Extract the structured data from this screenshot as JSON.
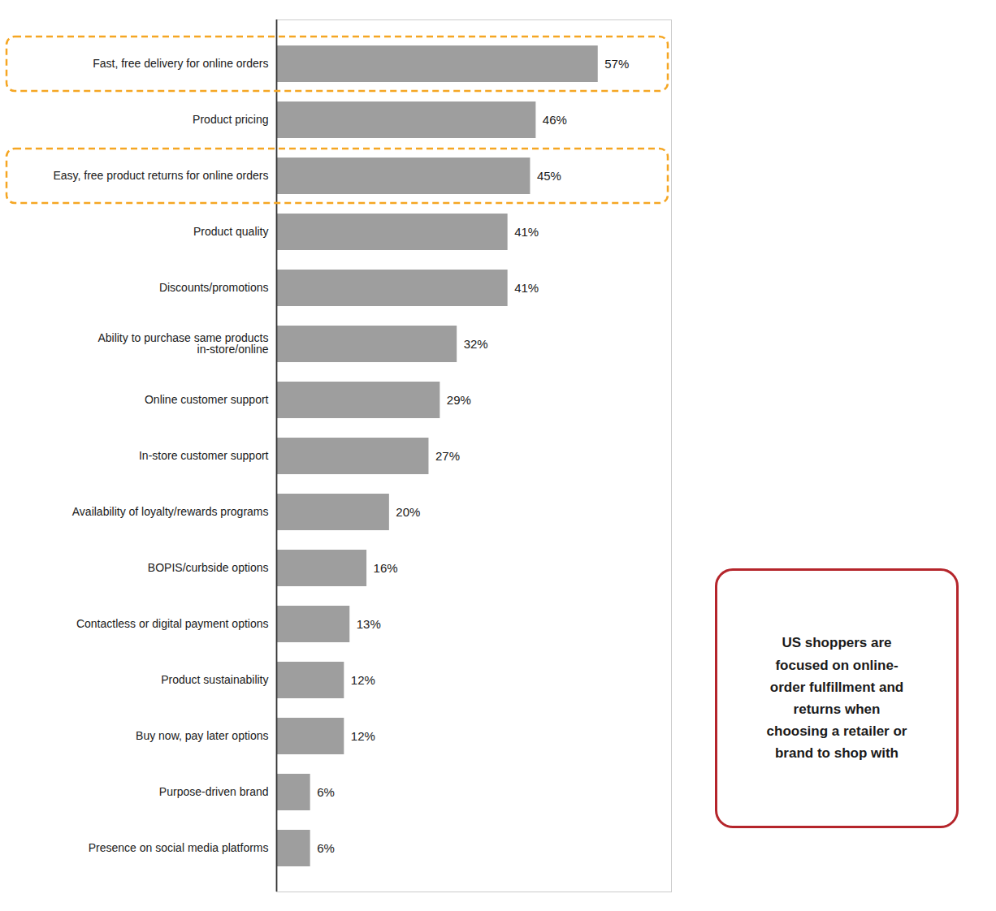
{
  "chart_data": {
    "type": "bar",
    "orientation": "horizontal",
    "categories": [
      "Fast, free delivery for online orders",
      "Product pricing",
      "Easy, free product returns for online orders",
      "Product quality",
      "Discounts/promotions",
      "Ability to purchase same products\nin-store/online",
      "Online customer support",
      "In-store customer support",
      "Availability of loyalty/rewards programs",
      "BOPIS/curbside options",
      "Contactless or digital payment options",
      "Product sustainability",
      "Buy now, pay later options",
      "Purpose-driven brand",
      "Presence on social media platforms"
    ],
    "values": [
      57,
      46,
      45,
      41,
      41,
      32,
      29,
      27,
      20,
      16,
      13,
      12,
      12,
      6,
      6
    ],
    "value_labels": [
      "57%",
      "46%",
      "45%",
      "41%",
      "41%",
      "32%",
      "29%",
      "27%",
      "20%",
      "16%",
      "13%",
      "12%",
      "12%",
      "6%",
      "6%"
    ],
    "data_labels": true,
    "color": "#9e9e9e",
    "xlim": [
      0,
      70
    ],
    "xticks": [],
    "tick_labels": "y",
    "grid": false,
    "highlights": [
      {
        "category": "Fast, free delivery for online orders",
        "color": "#f5a623"
      },
      {
        "category": "Easy, free product returns for online orders",
        "color": "#f5a623"
      }
    ],
    "annotations": [
      {
        "text": "US shoppers are\nfocused on online-\norder fulfillment and\nreturns when\nchoosing a retailer or\nbrand to shop with",
        "color": "#b5252b"
      }
    ]
  }
}
